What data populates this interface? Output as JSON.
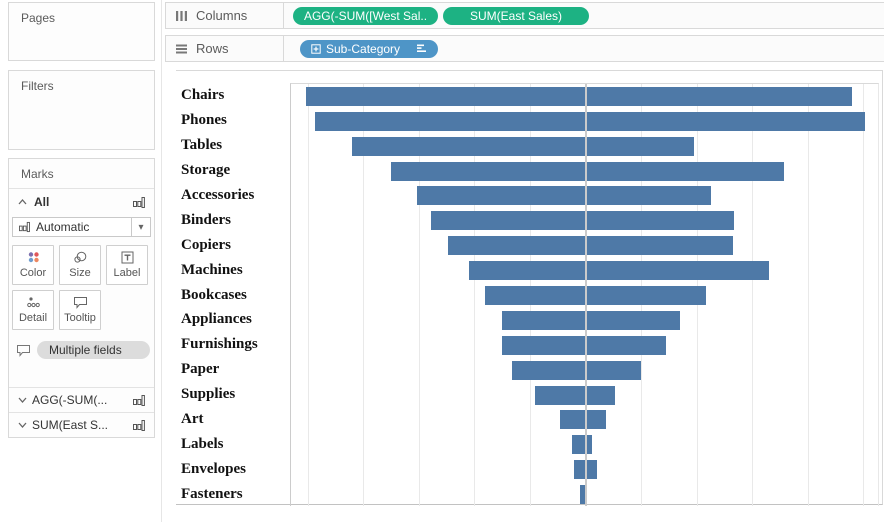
{
  "colors": {
    "bar": "#4e79a7",
    "measure_pill_green": "#1db283",
    "dimension_pill_blue": "#4e95c7",
    "gridline": "#e9e9e9",
    "zero_line": "#cbcbcb",
    "panel_border": "#d9d9d9"
  },
  "shelves": {
    "columns": {
      "label": "Columns",
      "pills": [
        "AGG(-SUM([West Sal..",
        "SUM(East Sales)"
      ]
    },
    "rows": {
      "label": "Rows",
      "pills": [
        "Sub-Category"
      ]
    }
  },
  "sidebar": {
    "pages_title": "Pages",
    "filters_title": "Filters",
    "marks": {
      "title": "Marks",
      "card": "All",
      "mark_type": "Automatic",
      "buttons": [
        "Color",
        "Size",
        "Label",
        "Detail",
        "Tooltip"
      ],
      "multi_pill": "Multiple fields",
      "measure_cards": [
        "AGG(-SUM(...",
        "SUM(East S..."
      ]
    }
  },
  "icons": {
    "columns": "three-vertical-bars",
    "rows": "three-horizontal-lines",
    "expand": "boxed-plus",
    "sort": "descending-bars",
    "mark_type": "bar-chart",
    "caret": "▾",
    "chevron_expanded": "∧",
    "chevron_collapsed": "∨"
  },
  "chart_data": {
    "type": "bar",
    "subtype": "diverging-horizontal",
    "row_field": "Sub-Category",
    "categories": [
      "Chairs",
      "Phones",
      "Tables",
      "Storage",
      "Accessories",
      "Binders",
      "Copiers",
      "Machines",
      "Bookcases",
      "Appliances",
      "Furnishings",
      "Paper",
      "Supplies",
      "Art",
      "Labels",
      "Envelopes",
      "Fasteners"
    ],
    "series": [
      {
        "name": "AGG(-SUM([West Sales]))",
        "values": [
          -100500,
          -97500,
          -84000,
          -70000,
          -60500,
          -55500,
          -49500,
          -42000,
          -36000,
          -30000,
          -30000,
          -26500,
          -18000,
          -9000,
          -5000,
          -4000,
          -2000
        ]
      },
      {
        "name": "SUM(East Sales)",
        "values": [
          96000,
          100500,
          39000,
          71500,
          45000,
          53500,
          53000,
          66000,
          43500,
          34000,
          29000,
          20000,
          10500,
          7500,
          2500,
          4000,
          500
        ]
      }
    ],
    "axis": {
      "min": -106000,
      "max": 106000,
      "gridline_interval": 20000,
      "zero_line": true,
      "tick_labels_visible": false
    },
    "bar_color": "#4e79a7",
    "grid": "vertical",
    "legend_position": "none"
  }
}
